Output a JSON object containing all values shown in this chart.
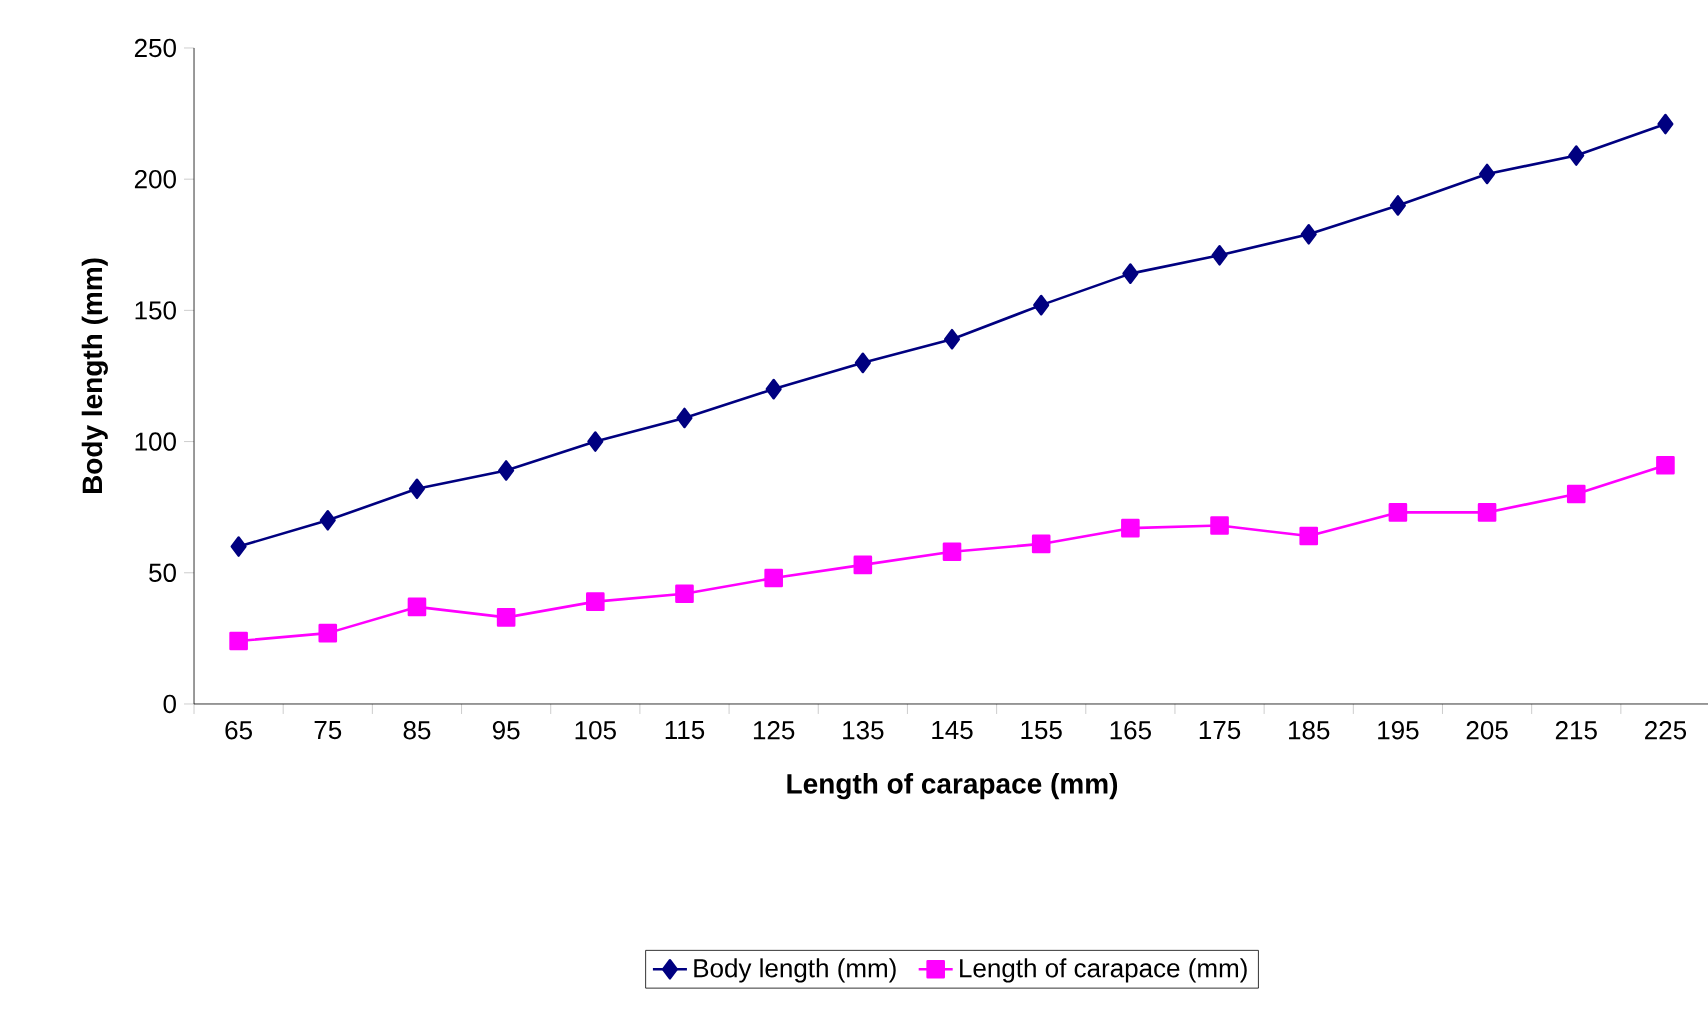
{
  "chart_data": {
    "type": "line",
    "xlabel": "Length of carapace (mm)",
    "ylabel": "Body length (mm)",
    "categories": [
      "65",
      "75",
      "85",
      "95",
      "105",
      "115",
      "125",
      "135",
      "145",
      "155",
      "165",
      "175",
      "185",
      "195",
      "205",
      "215",
      "225"
    ],
    "ylim": [
      0,
      250
    ],
    "yticks": [
      0,
      50,
      100,
      150,
      200,
      250
    ],
    "legend": "bottom",
    "series": [
      {
        "name": "Body length (mm)",
        "color": "#000080",
        "marker": "diamond",
        "values": [
          60,
          70,
          82,
          89,
          100,
          109,
          120,
          130,
          139,
          152,
          164,
          171,
          179,
          190,
          202,
          209,
          221
        ]
      },
      {
        "name": "Length of carapace (mm)",
        "color": "#ff00ff",
        "marker": "square",
        "values": [
          24,
          27,
          37,
          33,
          39,
          42,
          48,
          53,
          58,
          61,
          67,
          68,
          64,
          73,
          73,
          80,
          91
        ]
      }
    ]
  }
}
